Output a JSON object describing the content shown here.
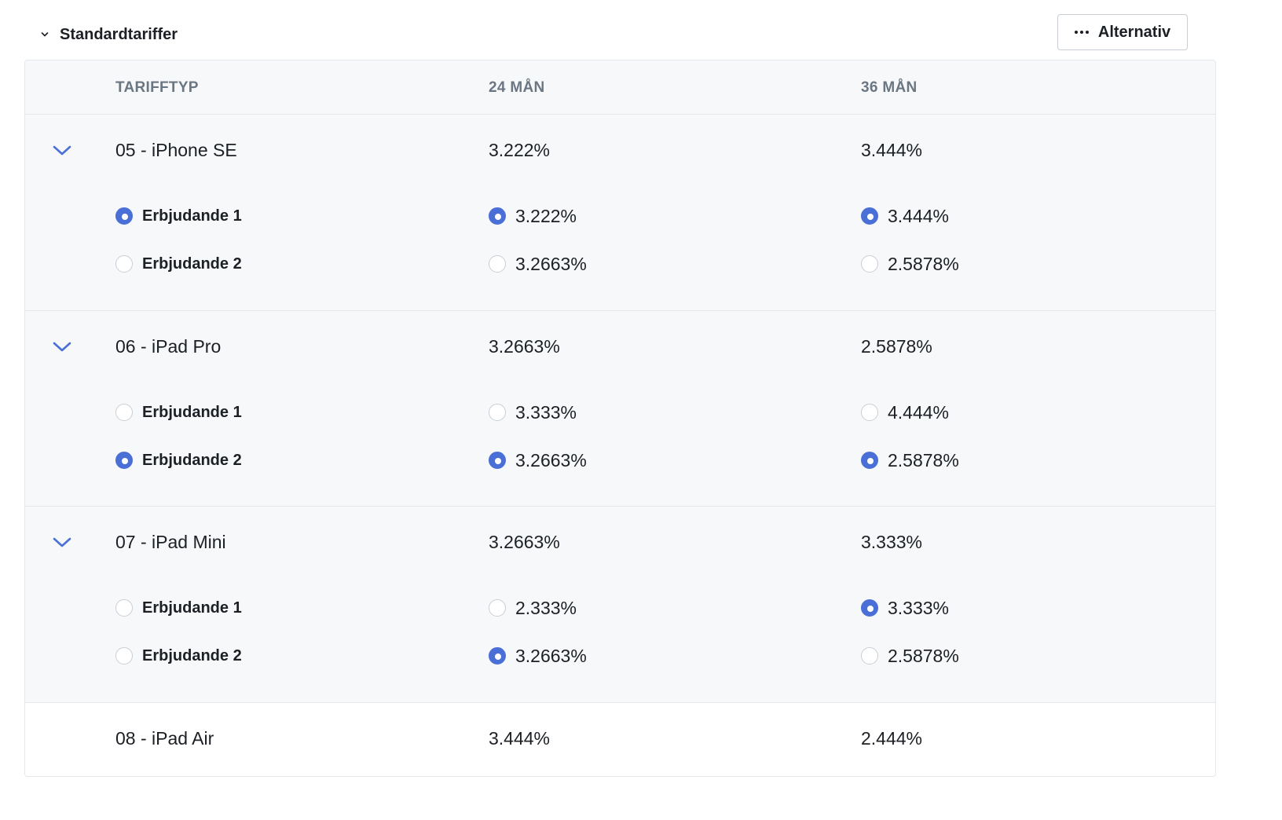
{
  "section": {
    "title": "Standardtariffer",
    "options_label": "Alternativ"
  },
  "columns": [
    "TARIFFTYP",
    "24 MÅN",
    "36 MÅN"
  ],
  "colors": {
    "accent": "#4a6fd6",
    "row_bg": "#f6f8fa",
    "header_text": "#6b7683"
  },
  "groups": [
    {
      "name": "05 - iPhone SE",
      "m24": "3.222%",
      "m36": "3.444%",
      "expanded": true,
      "offers": [
        {
          "label": "Erbjudande 1",
          "label_selected": true,
          "m24": "3.222%",
          "m24_selected": true,
          "m36": "3.444%",
          "m36_selected": true
        },
        {
          "label": "Erbjudande 2",
          "label_selected": false,
          "m24": "3.2663%",
          "m24_selected": false,
          "m36": "2.5878%",
          "m36_selected": false
        }
      ]
    },
    {
      "name": "06 - iPad Pro",
      "m24": "3.2663%",
      "m36": "2.5878%",
      "expanded": true,
      "offers": [
        {
          "label": "Erbjudande 1",
          "label_selected": false,
          "m24": "3.333%",
          "m24_selected": false,
          "m36": "4.444%",
          "m36_selected": false
        },
        {
          "label": "Erbjudande 2",
          "label_selected": true,
          "m24": "3.2663%",
          "m24_selected": true,
          "m36": "2.5878%",
          "m36_selected": true
        }
      ]
    },
    {
      "name": "07 - iPad Mini",
      "m24": "3.2663%",
      "m36": "3.333%",
      "expanded": true,
      "offers": [
        {
          "label": "Erbjudande 1",
          "label_selected": false,
          "m24": "2.333%",
          "m24_selected": false,
          "m36": "3.333%",
          "m36_selected": true
        },
        {
          "label": "Erbjudande 2",
          "label_selected": false,
          "m24": "3.2663%",
          "m24_selected": true,
          "m36": "2.5878%",
          "m36_selected": false
        }
      ]
    },
    {
      "name": "08 - iPad Air",
      "m24": "3.444%",
      "m36": "2.444%",
      "expanded": false,
      "offers": []
    }
  ]
}
